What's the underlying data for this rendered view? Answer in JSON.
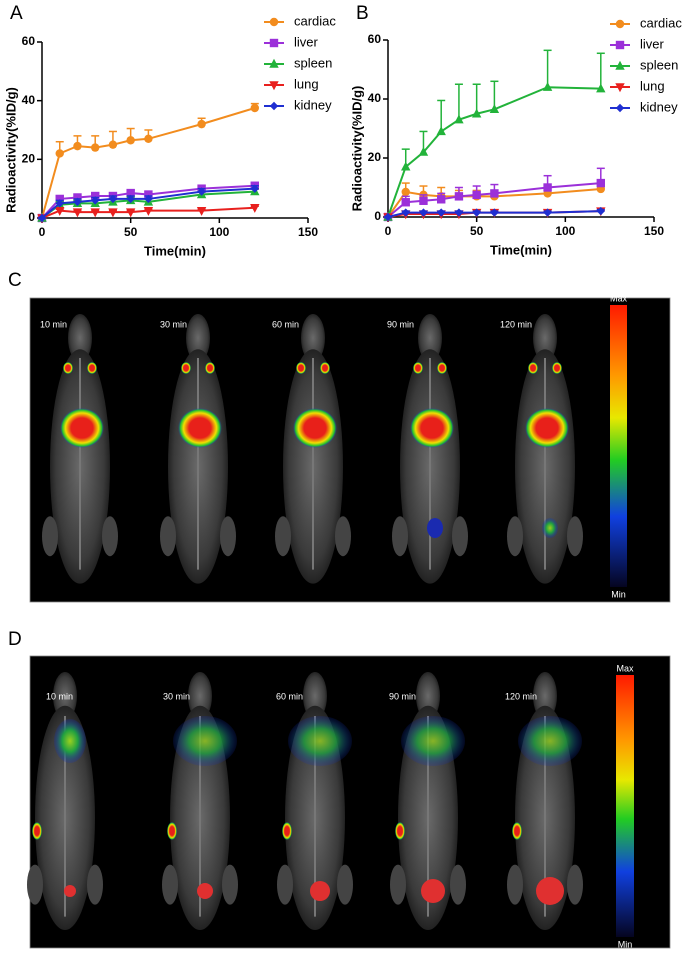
{
  "chart_data": [
    {
      "type": "line",
      "panel_label": "A",
      "x_label": "Time(min)",
      "y_label": "Radioactivity(%ID/g)",
      "x": [
        0,
        10,
        20,
        30,
        40,
        50,
        60,
        90,
        120
      ],
      "xlim": [
        0,
        150
      ],
      "xticks": [
        0,
        50,
        100,
        150
      ],
      "ylim": [
        0,
        60
      ],
      "yticks": [
        0,
        20,
        40,
        60
      ],
      "series": [
        {
          "name": "cardiac",
          "color": "#f28c1e",
          "marker": "circle",
          "values": [
            0,
            22,
            24.5,
            24,
            25,
            26.5,
            27,
            32,
            37.5
          ],
          "errors": [
            0,
            4,
            3.5,
            4,
            4.5,
            4,
            3,
            2,
            1.5
          ]
        },
        {
          "name": "liver",
          "color": "#9b30d9",
          "marker": "square",
          "values": [
            0,
            6.5,
            7,
            7.5,
            7.5,
            8.5,
            8,
            10,
            11
          ],
          "errors": [
            0,
            1,
            1,
            1,
            1,
            1,
            1,
            1,
            1
          ]
        },
        {
          "name": "spleen",
          "color": "#22b33a",
          "marker": "triangle-up",
          "values": [
            0,
            4.5,
            5,
            5,
            5.5,
            6,
            5.5,
            8,
            9
          ],
          "errors": [
            0,
            1,
            1,
            1,
            1,
            1,
            1,
            1,
            1
          ]
        },
        {
          "name": "lung",
          "color": "#e8201e",
          "marker": "triangle-down",
          "values": [
            0,
            2.5,
            2,
            2,
            2,
            2,
            2.5,
            2.5,
            3.5
          ],
          "errors": [
            0,
            0.5,
            0.5,
            0.5,
            0.5,
            0.5,
            0.5,
            0.5,
            0.5
          ]
        },
        {
          "name": "kidney",
          "color": "#1f2fd1",
          "marker": "diamond",
          "values": [
            0,
            5,
            5.5,
            6,
            6.5,
            6.5,
            6.5,
            9,
            10
          ],
          "errors": [
            0,
            1,
            1,
            1,
            1,
            1,
            1,
            1,
            1
          ]
        }
      ]
    },
    {
      "type": "line",
      "panel_label": "B",
      "x_label": "Time(min)",
      "y_label": "Radioactivity(%ID/g)",
      "x": [
        0,
        10,
        20,
        30,
        40,
        50,
        60,
        90,
        120
      ],
      "xlim": [
        0,
        150
      ],
      "xticks": [
        0,
        50,
        100,
        150
      ],
      "ylim": [
        0,
        60
      ],
      "yticks": [
        0,
        20,
        40,
        60
      ],
      "series": [
        {
          "name": "cardiac",
          "color": "#f28c1e",
          "marker": "circle",
          "values": [
            0,
            8.5,
            7.5,
            7,
            7,
            7,
            7,
            8,
            9.5
          ],
          "errors": [
            0,
            3,
            3,
            3,
            2,
            2,
            2,
            2,
            1.5
          ]
        },
        {
          "name": "liver",
          "color": "#9b30d9",
          "marker": "square",
          "values": [
            0,
            5,
            5.5,
            6,
            7,
            7.5,
            8,
            10,
            11.5
          ],
          "errors": [
            0,
            2,
            2,
            2,
            3,
            3,
            3,
            4,
            5
          ]
        },
        {
          "name": "spleen",
          "color": "#22b33a",
          "marker": "triangle-up",
          "values": [
            0,
            17,
            22,
            29,
            33,
            35,
            36.5,
            44,
            43.5
          ],
          "errors": [
            0,
            6,
            7,
            10.5,
            12,
            10,
            9.5,
            12.5,
            12
          ]
        },
        {
          "name": "lung",
          "color": "#e8201e",
          "marker": "triangle-down",
          "values": [
            0,
            1,
            1,
            1,
            1,
            1.5,
            1.5,
            1.5,
            2
          ],
          "errors": [
            0,
            0.3,
            0.3,
            0.3,
            0.3,
            0.3,
            0.3,
            0.3,
            0.3
          ]
        },
        {
          "name": "kidney",
          "color": "#1f2fd1",
          "marker": "diamond",
          "values": [
            0,
            1.5,
            1.5,
            1.5,
            1.5,
            1.5,
            1.5,
            1.5,
            2
          ],
          "errors": [
            0,
            0.5,
            0.5,
            0.5,
            0.5,
            0.5,
            0.5,
            0.5,
            0.5
          ]
        }
      ]
    }
  ],
  "images": [
    {
      "panel_label": "C",
      "time_labels": [
        "10 min",
        "30 min",
        "60 min",
        "90 min",
        "120 min"
      ],
      "scale_max": "Max",
      "scale_min": "Min"
    },
    {
      "panel_label": "D",
      "time_labels": [
        "10 min",
        "30 min",
        "60 min",
        "90 min",
        "120 min"
      ],
      "scale_max": "Max",
      "scale_min": "Min"
    }
  ]
}
